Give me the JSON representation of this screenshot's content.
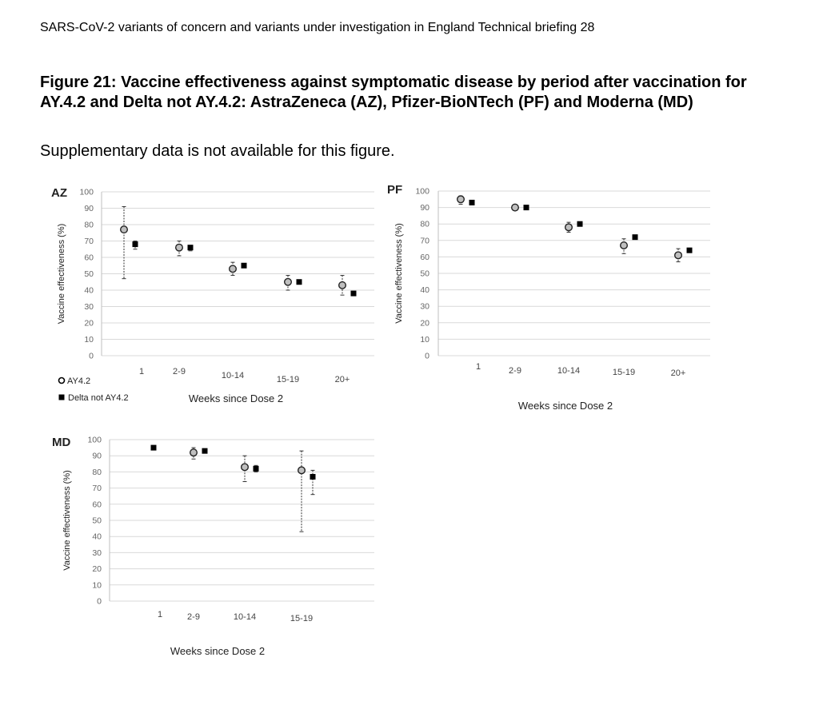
{
  "header": "SARS-CoV-2 variants of concern and variants under investigation in England Technical briefing 28",
  "figure_title": "Figure 21: Vaccine effectiveness against symptomatic disease by period after vaccination for AY.4.2 and Delta not AY.4.2: AstraZeneca (AZ), Pfizer-BioNTech (PF) and Moderna (MD)",
  "note": "Supplementary data is not available for this figure.",
  "legend": {
    "ay42": "AY4.2",
    "delta": "Delta not AY4.2"
  },
  "chart_data": [
    {
      "type": "scatter",
      "title": "AZ",
      "xlabel": "Weeks since Dose 2",
      "ylabel": "Vaccine effectiveness (%)",
      "ylim": [
        0,
        100
      ],
      "yticks": [
        0,
        10,
        20,
        30,
        40,
        50,
        60,
        70,
        80,
        90,
        100
      ],
      "categories": [
        "1",
        "2-9",
        "10-14",
        "15-19",
        "20+"
      ],
      "series": [
        {
          "name": "AY4.2",
          "values": [
            77,
            66,
            53,
            45,
            43
          ],
          "lower": [
            47,
            61,
            49,
            40,
            37
          ],
          "upper": [
            91,
            70,
            57,
            49,
            49
          ]
        },
        {
          "name": "Delta not AY4.2",
          "values": [
            68,
            66,
            55,
            45,
            38
          ],
          "lower": [
            65,
            64,
            54,
            44,
            37
          ],
          "upper": [
            70,
            67,
            56,
            46,
            39
          ]
        }
      ]
    },
    {
      "type": "scatter",
      "title": "PF",
      "xlabel": "Weeks since Dose 2",
      "ylabel": "Vaccine effectiveness (%)",
      "ylim": [
        0,
        100
      ],
      "yticks": [
        0,
        10,
        20,
        30,
        40,
        50,
        60,
        70,
        80,
        90,
        100
      ],
      "categories": [
        "1",
        "2-9",
        "10-14",
        "15-19",
        "20+"
      ],
      "series": [
        {
          "name": "AY4.2",
          "values": [
            95,
            90,
            78,
            67,
            61
          ],
          "lower": [
            92,
            89,
            75,
            62,
            57
          ],
          "upper": [
            97,
            91,
            81,
            71,
            65
          ]
        },
        {
          "name": "Delta not AY4.2",
          "values": [
            93,
            90,
            80,
            72,
            64
          ],
          "lower": [
            92,
            89,
            79,
            71,
            63
          ],
          "upper": [
            94,
            91,
            81,
            73,
            65
          ]
        }
      ]
    },
    {
      "type": "scatter",
      "title": "MD",
      "xlabel": "Weeks since Dose 2",
      "ylabel": "Vaccine effectiveness (%)",
      "ylim": [
        0,
        100
      ],
      "yticks": [
        0,
        10,
        20,
        30,
        40,
        50,
        60,
        70,
        80,
        90,
        100
      ],
      "categories": [
        "1",
        "2-9",
        "10-14",
        "15-19"
      ],
      "series": [
        {
          "name": "AY4.2",
          "values": [
            null,
            92,
            83,
            81
          ],
          "lower": [
            null,
            88,
            74,
            43
          ],
          "upper": [
            null,
            95,
            90,
            93
          ]
        },
        {
          "name": "Delta not AY4.2",
          "values": [
            95,
            93,
            82,
            77
          ],
          "lower": [
            94,
            92,
            80,
            66
          ],
          "upper": [
            96,
            94,
            84,
            81
          ]
        }
      ]
    }
  ]
}
